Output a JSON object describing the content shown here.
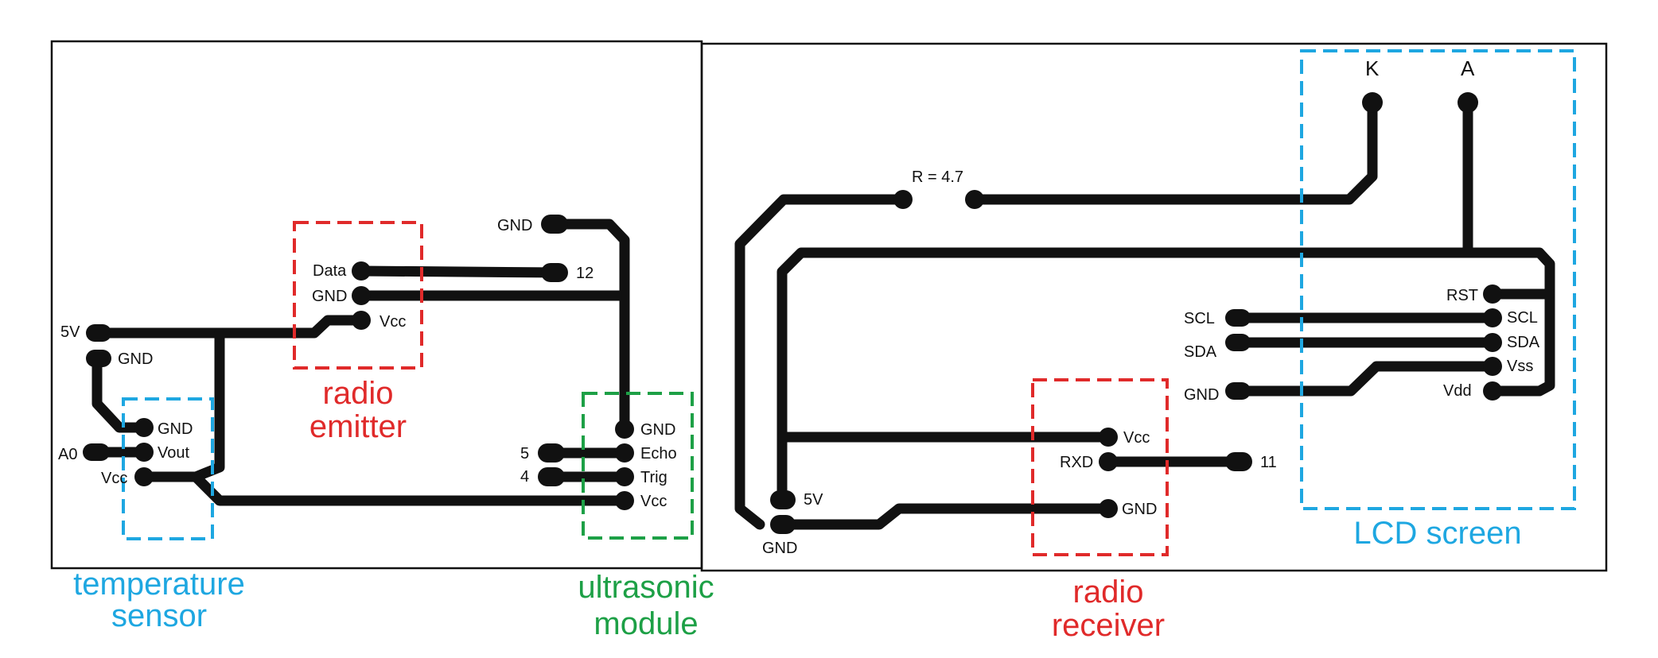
{
  "colors": {
    "trace": "#111111",
    "temperature": "#1ea7e1",
    "radio": "#e02a2a",
    "ultrasonic": "#1da046",
    "lcd": "#1ea7e1"
  },
  "left_board": {
    "temperature_sensor": {
      "label_line1": "temperature",
      "label_line2": "sensor",
      "pins": {
        "gnd": "GND",
        "vout": "Vout",
        "vcc": "Vcc"
      }
    },
    "connectors": {
      "five_v": "5V",
      "gnd": "GND",
      "a0": "A0"
    },
    "radio_emitter": {
      "label_line1": "radio",
      "label_line2": "emitter",
      "pins": {
        "data": "Data",
        "gnd": "GND",
        "vcc": "Vcc"
      },
      "data_pin_number": "12"
    },
    "ultrasonic_module": {
      "label_line1": "ultrasonic",
      "label_line2": "module",
      "pins": {
        "gnd": "GND",
        "echo": "Echo",
        "trig": "Trig",
        "vcc": "Vcc"
      },
      "top_gnd": "GND",
      "echo_pin_number": "5",
      "trig_pin_number": "4"
    }
  },
  "right_board": {
    "resistor": "R = 4.7",
    "lcd_screen": {
      "label": "LCD screen",
      "k": "K",
      "a": "A",
      "pins": {
        "rst": "RST",
        "scl": "SCL",
        "sda": "SDA",
        "vss": "Vss",
        "vdd": "Vdd"
      },
      "inputs": {
        "scl": "SCL",
        "sda": "SDA",
        "gnd": "GND"
      }
    },
    "radio_receiver": {
      "label_line1": "radio",
      "label_line2": "receiver",
      "pins": {
        "vcc": "Vcc",
        "rxd": "RXD",
        "gnd": "GND"
      },
      "rxd_pin_number": "11"
    },
    "power": {
      "five_v": "5V",
      "gnd": "GND"
    }
  }
}
